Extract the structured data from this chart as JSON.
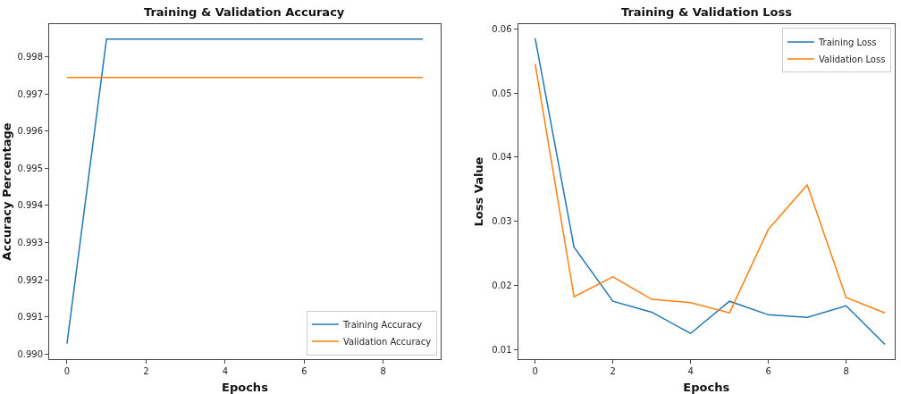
{
  "chart_data": [
    {
      "type": "line",
      "title": "Training & Validation Accuracy",
      "xlabel": "Epochs",
      "ylabel": "Accuracy Percentage",
      "x": [
        0,
        1,
        2,
        3,
        4,
        5,
        6,
        7,
        8,
        9
      ],
      "series": [
        {
          "name": "Training Accuracy",
          "color": "#1f77b4",
          "values": [
            0.99028,
            0.99848,
            0.99848,
            0.99848,
            0.99848,
            0.99848,
            0.99848,
            0.99848,
            0.99848,
            0.99848
          ]
        },
        {
          "name": "Validation Accuracy",
          "color": "#ff7f0e",
          "values": [
            0.99744,
            0.99744,
            0.99744,
            0.99744,
            0.99744,
            0.99744,
            0.99744,
            0.99744,
            0.99744,
            0.99744
          ]
        }
      ],
      "xlim": [
        -0.45,
        9.45
      ],
      "ylim": [
        0.98986,
        0.99888
      ],
      "xticks": [
        0,
        2,
        4,
        6,
        8
      ],
      "yticks": [
        {
          "value": 0.99,
          "label": "0.990"
        },
        {
          "value": 0.991,
          "label": "0.991"
        },
        {
          "value": 0.992,
          "label": "0.992"
        },
        {
          "value": 0.993,
          "label": "0.993"
        },
        {
          "value": 0.994,
          "label": "0.994"
        },
        {
          "value": 0.995,
          "label": "0.995"
        },
        {
          "value": 0.996,
          "label": "0.996"
        },
        {
          "value": 0.997,
          "label": "0.997"
        },
        {
          "value": 0.998,
          "label": "0.998"
        }
      ],
      "legend": "bottom right"
    },
    {
      "type": "line",
      "title": "Training & Validation Loss",
      "xlabel": "Epochs",
      "ylabel": "Loss Value",
      "x": [
        0,
        1,
        2,
        3,
        4,
        5,
        6,
        7,
        8,
        9
      ],
      "series": [
        {
          "name": "Training Loss",
          "color": "#1f77b4",
          "values": [
            0.0585,
            0.026,
            0.0176,
            0.0159,
            0.0126,
            0.0176,
            0.0155,
            0.0151,
            0.0169,
            0.0109
          ]
        },
        {
          "name": "Validation Loss",
          "color": "#ff7f0e",
          "values": [
            0.0545,
            0.0183,
            0.0214,
            0.0179,
            0.0174,
            0.0158,
            0.0288,
            0.0357,
            0.0182,
            0.0158
          ]
        }
      ],
      "xlim": [
        -0.44,
        9.25
      ],
      "ylim": [
        0.0086,
        0.0607
      ],
      "xticks": [
        0,
        2,
        4,
        6,
        8
      ],
      "yticks": [
        {
          "value": 0.01,
          "label": "0.01"
        },
        {
          "value": 0.02,
          "label": "0.02"
        },
        {
          "value": 0.03,
          "label": "0.03"
        },
        {
          "value": 0.04,
          "label": "0.04"
        },
        {
          "value": 0.05,
          "label": "0.05"
        },
        {
          "value": 0.06,
          "label": "0.06"
        }
      ],
      "legend": "top right"
    }
  ]
}
